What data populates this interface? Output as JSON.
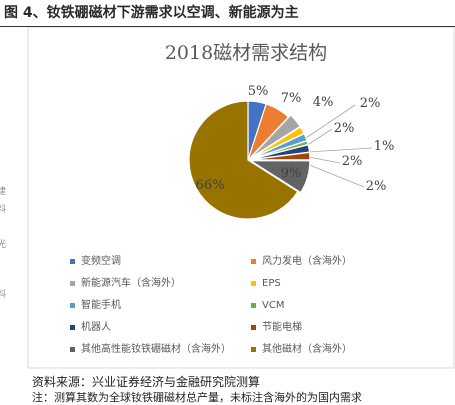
{
  "figure": {
    "title": "图 4、钕铁硼磁材下游需求以空调、新能源为主",
    "source": "资料来源：兴业证券经济与金融研究院测算",
    "footnote": "注：测算其数为全球钕铁硼磁材总产量，未标注含海外的为国内需求",
    "left_fragments": [
      "建",
      "料",
      "光",
      "料"
    ]
  },
  "colors": {
    "variable_ac": "#4472C4",
    "wind_power": "#ED7D31",
    "nev": "#A5A5A5",
    "eps": "#FFC000",
    "smartphone": "#5B9BD5",
    "vcm": "#70AD47",
    "robot": "#264478",
    "energy_elevator": "#9E480E",
    "other_high_perf": "#636363",
    "other_magnets": "#997300"
  },
  "chart_data": {
    "type": "pie",
    "title": "2018磁材需求结构",
    "start_angle_deg": 0,
    "slices": [
      {
        "name": "变频空调",
        "value": 5,
        "label": "5%",
        "color_key": "variable_ac"
      },
      {
        "name": "风力发电（含海外）",
        "value": 7,
        "label": "7%",
        "color_key": "wind_power"
      },
      {
        "name": "新能源汽车（含海外）",
        "value": 4,
        "label": "4%",
        "color_key": "nev"
      },
      {
        "name": "EPS",
        "value": 2,
        "label": "2%",
        "color_key": "eps"
      },
      {
        "name": "智能手机",
        "value": 2,
        "label": "2%",
        "color_key": "smartphone"
      },
      {
        "name": "VCM",
        "value": 1,
        "label": "1%",
        "color_key": "vcm"
      },
      {
        "name": "机器人",
        "value": 2,
        "label": "2%",
        "color_key": "robot"
      },
      {
        "name": "节能电梯",
        "value": 2,
        "label": "2%",
        "color_key": "energy_elevator"
      },
      {
        "name": "其他高性能钕铁硼磁材（含海外）",
        "value": 9,
        "label": "9%",
        "color_key": "other_high_perf"
      },
      {
        "name": "其他磁材（含海外）",
        "value": 66,
        "label": "66%",
        "color_key": "other_magnets"
      }
    ],
    "legend": {
      "position": "bottom",
      "columns": 2,
      "entries": [
        "变频空调",
        "风力发电（含海外）",
        "新能源汽车（含海外）",
        "EPS",
        "智能手机",
        "VCM",
        "机器人",
        "节能电梯",
        "其他高性能钕铁硼磁材（含海外）",
        "其他磁材（含海外）"
      ]
    }
  }
}
